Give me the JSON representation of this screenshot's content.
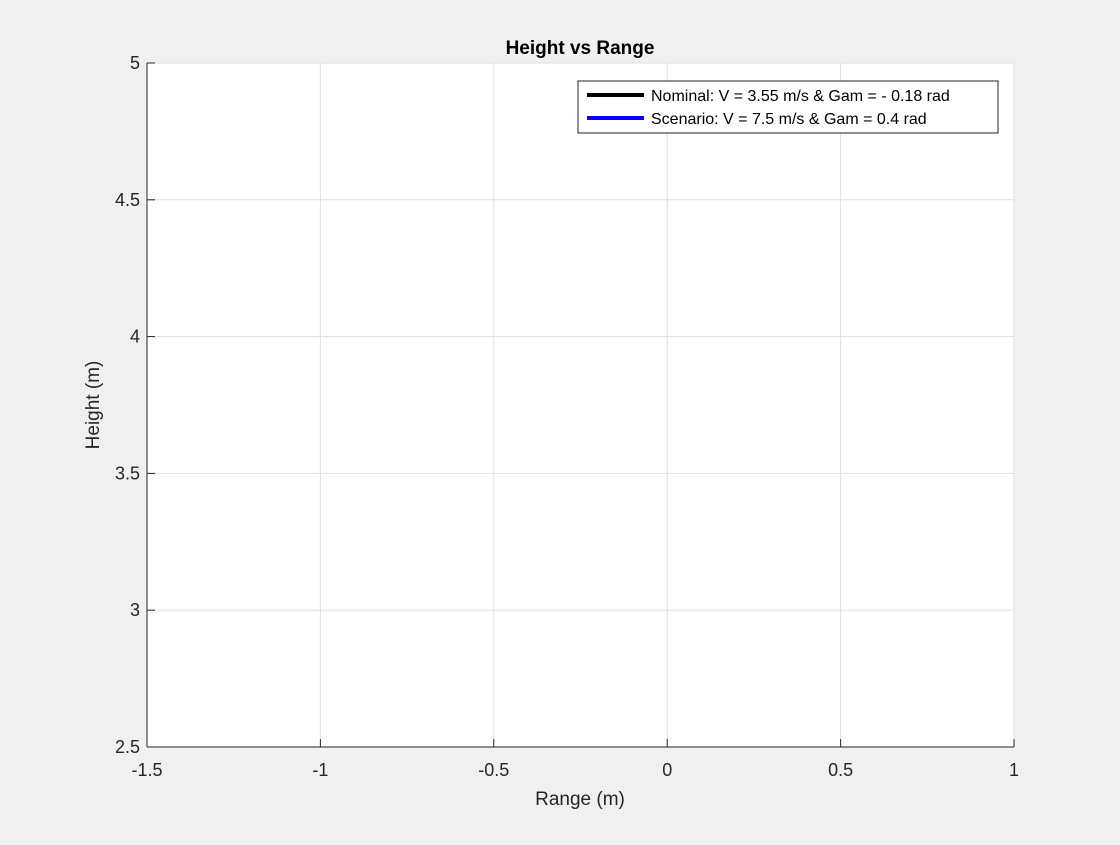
{
  "chart_data": {
    "type": "line",
    "title": "Height vs Range",
    "xlabel": "Range (m)",
    "ylabel": "Height (m)",
    "xlim": [
      -1.5,
      1
    ],
    "ylim": [
      2.5,
      5
    ],
    "x_ticks": [
      -1.5,
      -1,
      -0.5,
      0,
      0.5,
      1
    ],
    "x_tick_labels": [
      "-1.5",
      "-1",
      "-0.5",
      "0",
      "0.5",
      "1"
    ],
    "y_ticks": [
      2.5,
      3,
      3.5,
      4,
      4.5,
      5
    ],
    "y_tick_labels": [
      "2.5",
      "3",
      "3.5",
      "4",
      "4.5",
      "5"
    ],
    "grid": true,
    "legend_position": "top-right",
    "series": [
      {
        "name": "Nominal: V = 3.55 m/s & Gam = - 0.18 rad",
        "color": "#000000",
        "x": [],
        "y": []
      },
      {
        "name": "Scenario: V = 7.5 m/s & Gam = 0.4 rad",
        "color": "#0000ff",
        "x": [],
        "y": []
      }
    ]
  }
}
